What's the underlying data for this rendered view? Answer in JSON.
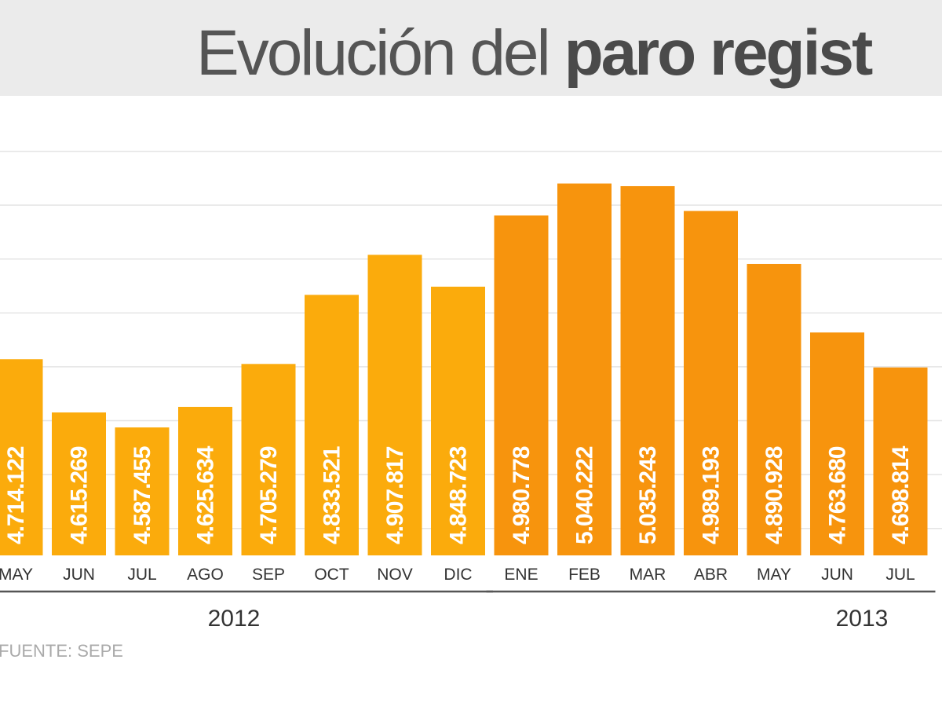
{
  "chart_data": {
    "type": "bar",
    "title": "Evolución del",
    "title_bold": "paro regist",
    "source": "FUENTE: SEPE",
    "categories": [
      "MAY",
      "JUN",
      "JUL",
      "AGO",
      "SEP",
      "OCT",
      "NOV",
      "DIC",
      "ENE",
      "FEB",
      "MAR",
      "ABR",
      "MAY",
      "JUN",
      "JUL"
    ],
    "series": [
      {
        "name": "2012",
        "color": "#fbab0c",
        "values": [
          4714122,
          4615269,
          4587455,
          4625634,
          4705279,
          4833521,
          4907817,
          4848723,
          null,
          null,
          null,
          null,
          null,
          null,
          null
        ],
        "value_labels": [
          "4.714.122",
          "4.615.269",
          "4.587.455",
          "4.625.634",
          "4.705.279",
          "4.833.521",
          "4.907.817",
          "4.848.723",
          null,
          null,
          null,
          null,
          null,
          null,
          null
        ]
      },
      {
        "name": "2013",
        "color": "#f7940d",
        "values": [
          null,
          null,
          null,
          null,
          null,
          null,
          null,
          null,
          4980778,
          5040222,
          5035243,
          4989193,
          4890928,
          4763680,
          4698814
        ],
        "value_labels": [
          null,
          null,
          null,
          null,
          null,
          null,
          null,
          null,
          "4.980.778",
          "5.040.222",
          "5.035.243",
          "4.989.193",
          "4.890.928",
          "4.763.680",
          "4.698.814"
        ]
      }
    ],
    "ylim": [
      4350000,
      5130000
    ],
    "yticks": [
      4400000,
      4500000,
      4600000,
      4700000,
      4800000,
      4900000,
      5000000,
      5100000
    ],
    "grid": true
  }
}
